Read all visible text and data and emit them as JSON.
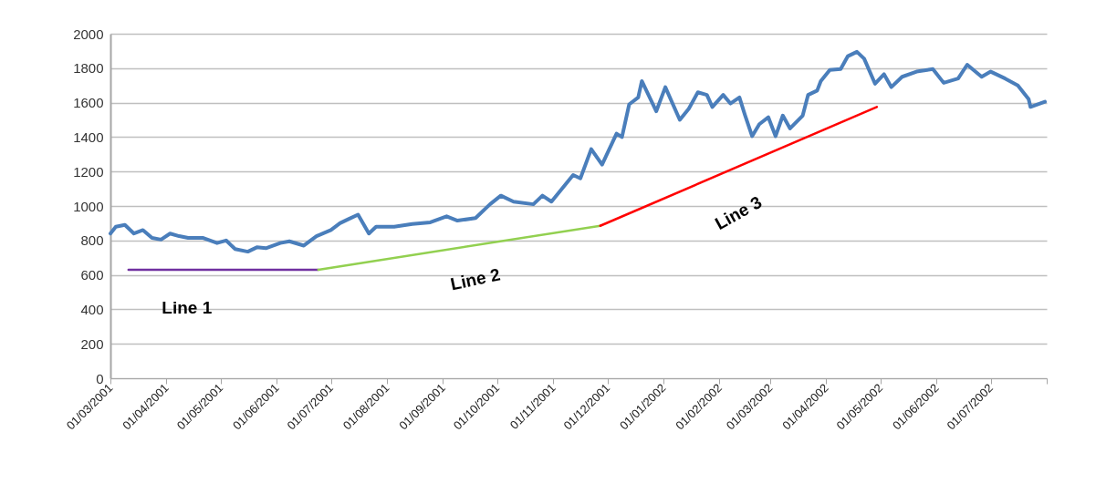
{
  "chart_data": {
    "type": "line",
    "xlim": [
      "2001-03-01",
      "2002-08-01"
    ],
    "ylim": [
      0,
      2000
    ],
    "yticks": [
      0,
      200,
      400,
      600,
      800,
      1000,
      1200,
      1400,
      1600,
      1800,
      2000
    ],
    "xticks": [
      {
        "value": "2001-03-01",
        "label": "01/03/2001"
      },
      {
        "value": "2001-04-01",
        "label": "01/04/2001"
      },
      {
        "value": "2001-05-01",
        "label": "01/05/2001"
      },
      {
        "value": "2001-06-01",
        "label": "01/06/2001"
      },
      {
        "value": "2001-07-01",
        "label": "01/07/2001"
      },
      {
        "value": "2001-08-01",
        "label": "01/08/2001"
      },
      {
        "value": "2001-09-01",
        "label": "01/09/2001"
      },
      {
        "value": "2001-10-01",
        "label": "01/10/2001"
      },
      {
        "value": "2001-11-01",
        "label": "01/11/2001"
      },
      {
        "value": "2001-12-01",
        "label": "01/12/2001"
      },
      {
        "value": "2002-01-01",
        "label": "01/01/2002"
      },
      {
        "value": "2002-02-01",
        "label": "01/02/2002"
      },
      {
        "value": "2002-03-01",
        "label": "01/03/2002"
      },
      {
        "value": "2002-04-01",
        "label": "01/04/2002"
      },
      {
        "value": "2002-05-01",
        "label": "01/05/2002"
      },
      {
        "value": "2002-06-01",
        "label": "01/06/2002"
      },
      {
        "value": "2002-07-01",
        "label": "01/07/2002"
      },
      {
        "value": "2002-08-01",
        "label": null
      }
    ],
    "grid": "y",
    "series": [
      {
        "color": "#4a7ebb",
        "x": [
          "2001-03-01",
          "2001-03-04",
          "2001-03-09",
          "2001-03-14",
          "2001-03-19",
          "2001-03-24",
          "2001-03-29",
          "2001-04-03",
          "2001-04-08",
          "2001-04-13",
          "2001-04-21",
          "2001-04-29",
          "2001-05-04",
          "2001-05-09",
          "2001-05-16",
          "2001-05-21",
          "2001-05-26",
          "2001-06-03",
          "2001-06-08",
          "2001-06-16",
          "2001-06-23",
          "2001-07-01",
          "2001-07-06",
          "2001-07-11",
          "2001-07-16",
          "2001-07-22",
          "2001-07-26",
          "2001-08-05",
          "2001-08-15",
          "2001-08-25",
          "2001-09-03",
          "2001-09-09",
          "2001-09-19",
          "2001-09-27",
          "2001-10-03",
          "2001-10-10",
          "2001-10-21",
          "2001-10-26",
          "2001-10-31",
          "2001-11-12",
          "2001-11-16",
          "2001-11-22",
          "2001-11-28",
          "2001-12-06",
          "2001-12-09",
          "2001-12-13",
          "2001-12-18",
          "2001-12-20",
          "2001-12-28",
          "2002-01-02",
          "2002-01-10",
          "2002-01-15",
          "2002-01-20",
          "2002-01-25",
          "2002-01-28",
          "2002-02-03",
          "2002-02-07",
          "2002-02-12",
          "2002-02-15",
          "2002-02-19",
          "2002-02-23",
          "2002-02-28",
          "2002-03-04",
          "2002-03-08",
          "2002-03-12",
          "2002-03-19",
          "2002-03-22",
          "2002-03-27",
          "2002-03-29",
          "2002-04-03",
          "2002-04-09",
          "2002-04-13",
          "2002-04-18",
          "2002-04-22",
          "2002-04-28",
          "2002-05-03",
          "2002-05-07",
          "2002-05-13",
          "2002-05-21",
          "2002-05-30",
          "2002-06-05",
          "2002-06-13",
          "2002-06-18",
          "2002-06-26",
          "2002-07-01",
          "2002-07-09",
          "2002-07-16",
          "2002-07-22",
          "2002-07-23",
          "2002-07-31"
        ],
        "values": [
          840,
          880,
          890,
          840,
          860,
          815,
          805,
          840,
          825,
          815,
          815,
          785,
          800,
          750,
          735,
          760,
          755,
          785,
          795,
          770,
          825,
          860,
          900,
          925,
          950,
          840,
          880,
          880,
          895,
          905,
          940,
          915,
          930,
          1010,
          1060,
          1025,
          1010,
          1060,
          1025,
          1180,
          1160,
          1330,
          1240,
          1420,
          1400,
          1590,
          1630,
          1725,
          1550,
          1690,
          1500,
          1565,
          1660,
          1645,
          1575,
          1645,
          1595,
          1630,
          1530,
          1405,
          1475,
          1515,
          1405,
          1525,
          1450,
          1525,
          1645,
          1670,
          1725,
          1790,
          1795,
          1870,
          1895,
          1855,
          1710,
          1765,
          1690,
          1750,
          1780,
          1795,
          1715,
          1740,
          1820,
          1750,
          1780,
          1740,
          1700,
          1620,
          1575,
          1605
        ]
      },
      {
        "name": "Line 1",
        "color": "#7030a0",
        "x": [
          "2001-03-11",
          "2001-06-24"
        ],
        "values": [
          630,
          630
        ]
      },
      {
        "name": "Line 2",
        "color": "#92d050",
        "x": [
          "2001-06-24",
          "2001-11-27"
        ],
        "values": [
          630,
          885
        ]
      },
      {
        "name": "Line 3",
        "color": "#ff0000",
        "x": [
          "2001-11-27",
          "2002-04-29"
        ],
        "values": [
          885,
          1575
        ]
      }
    ]
  }
}
